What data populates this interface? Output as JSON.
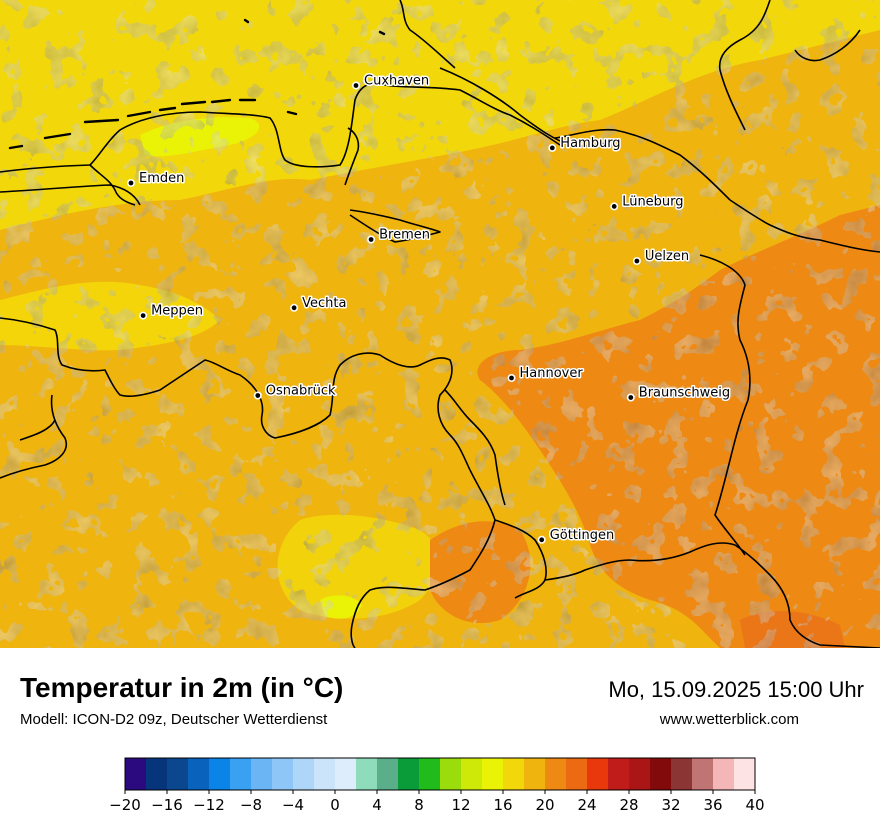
{
  "map": {
    "title": "Temperatur in 2m (in °C)",
    "subtitle": "Modell: ICON-D2 09z, Deutscher Wetterdienst",
    "datetime": "Mo, 15.09.2025 15:00 Uhr",
    "website": "www.wetterblick.com",
    "colors": {
      "base_yellow": "#f2d70a",
      "mid_orange": "#f0b40f",
      "warm_orange": "#ee8a14",
      "hot_patch": "#e8691a",
      "cool_patch": "#eaf205"
    },
    "cities": [
      {
        "name": "Cuxhaven",
        "lat": 53.87,
        "lon": 8.7
      },
      {
        "name": "Hamburg",
        "lat": 53.55,
        "lon": 10.0
      },
      {
        "name": "Emden",
        "lat": 53.37,
        "lon": 7.21
      },
      {
        "name": "Lüneburg",
        "lat": 53.25,
        "lon": 10.41
      },
      {
        "name": "Bremen",
        "lat": 53.08,
        "lon": 8.8
      },
      {
        "name": "Uelzen",
        "lat": 52.97,
        "lon": 10.56
      },
      {
        "name": "Vechta",
        "lat": 52.73,
        "lon": 8.29
      },
      {
        "name": "Meppen",
        "lat": 52.69,
        "lon": 7.29
      },
      {
        "name": "Hannover",
        "lat": 52.37,
        "lon": 9.73
      },
      {
        "name": "Osnabrück",
        "lat": 52.28,
        "lon": 8.05
      },
      {
        "name": "Braunschweig",
        "lat": 52.27,
        "lon": 10.52
      },
      {
        "name": "Göttingen",
        "lat": 51.54,
        "lon": 9.93
      }
    ]
  },
  "colorbar": {
    "colors": [
      "#2a0a7e",
      "#06357c",
      "#0a478f",
      "#0963bc",
      "#0a84e6",
      "#3aa0f2",
      "#6cb5f5",
      "#8ec7f7",
      "#aed6f8",
      "#cce4fa",
      "#deedfb",
      "#8edcbc",
      "#5aaf8a",
      "#0b9c3a",
      "#21bb1b",
      "#9bdc0d",
      "#cee908",
      "#eaf205",
      "#f2d70a",
      "#f0b40f",
      "#ee8a14",
      "#ec6b12",
      "#e8380c",
      "#c01c1a",
      "#aa1515",
      "#820a0a",
      "#8c3535",
      "#c07474",
      "#f4b6b6",
      "#fde3e3"
    ],
    "min": -20,
    "max": 40,
    "tick_labels": [
      "−20",
      "−16",
      "−12",
      "−8",
      "−4",
      "0",
      "4",
      "8",
      "12",
      "16",
      "20",
      "24",
      "28",
      "32",
      "36",
      "40"
    ]
  }
}
